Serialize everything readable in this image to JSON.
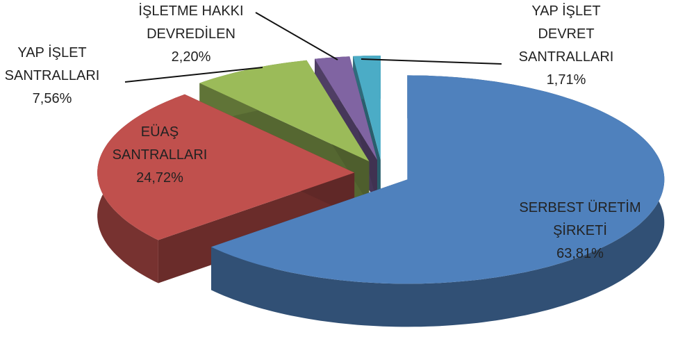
{
  "chart_data": {
    "type": "pie",
    "categories": [
      "SERBEST ÜRETİM\nŞİRKETİ",
      "EÜAŞ\nSANTRALLARI",
      "YAP İŞLET\nSANTRALLARI",
      "İŞLETME HAKKI\nDEVREDİLEN",
      "YAP İŞLET\nDEVRET\nSANTRALLARI"
    ],
    "values": [
      63.81,
      24.72,
      7.56,
      2.2,
      1.71
    ],
    "value_labels": [
      "63,81%",
      "24,72%",
      "7,56%",
      "2,20%",
      "1,71%"
    ],
    "colors": [
      "#4f81bd",
      "#c0504d",
      "#9bbb59",
      "#8064a2",
      "#4bacc6"
    ]
  }
}
